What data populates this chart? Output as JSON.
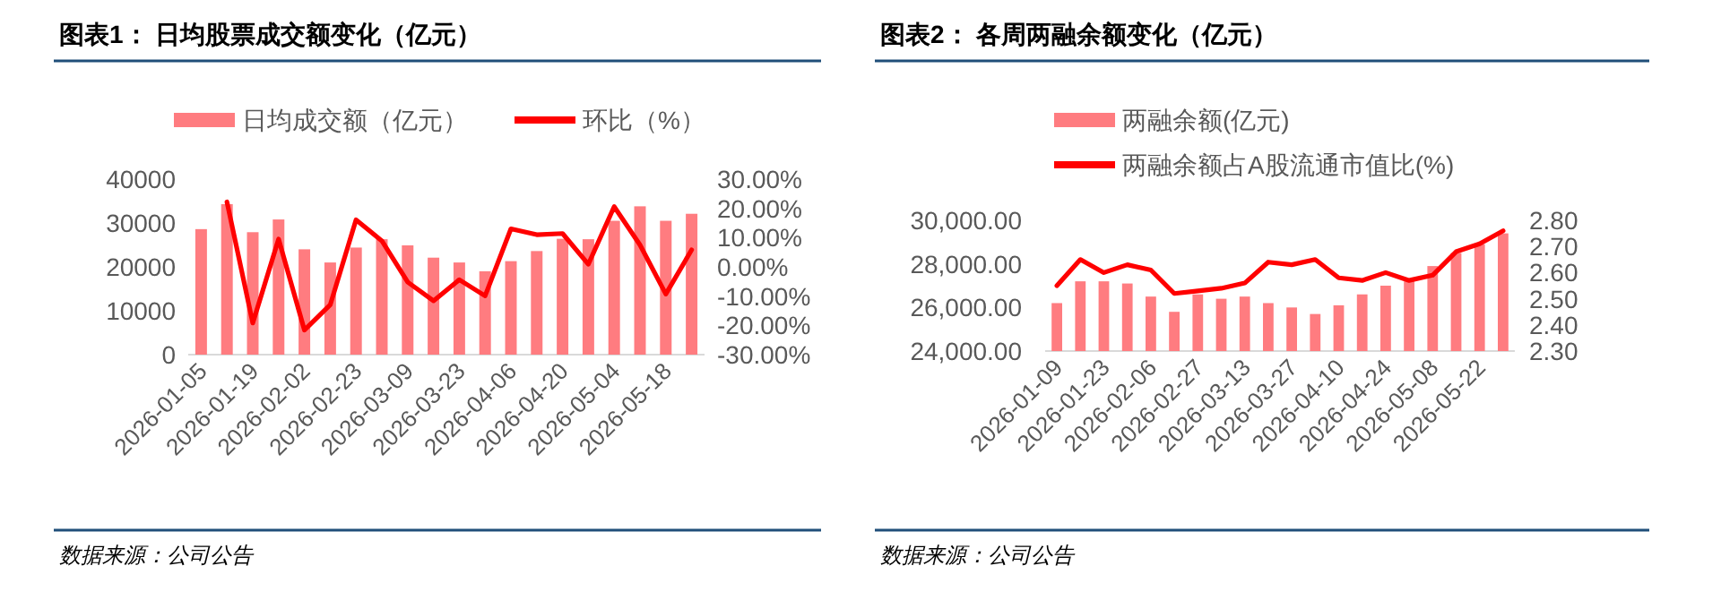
{
  "chart_data": [
    {
      "type": "bar",
      "title": "图表1：  日均股票成交额变化（亿元）",
      "annotations": [
        "数据来源：公司公告"
      ],
      "categories": [
        "2026-01-05",
        null,
        "2026-01-19",
        null,
        "2026-02-02",
        null,
        "2026-02-23",
        null,
        "2026-03-09",
        null,
        "2026-03-23",
        null,
        "2026-04-06",
        null,
        "2026-04-20",
        null,
        "2026-05-04",
        null,
        "2026-05-18",
        null
      ],
      "series": [
        {
          "name": "日均成交额（亿元）",
          "color": "#ff7c80",
          "values": [
            28600,
            34300,
            27900,
            30800,
            24000,
            21000,
            24400,
            26300,
            24900,
            22100,
            21000,
            19000,
            21300,
            23600,
            26400,
            26300,
            30500,
            33800,
            30500,
            32100
          ]
        },
        {
          "name": "环比（%）",
          "type": "line",
          "axis": "y2",
          "color": "#ff0000",
          "values": [
            null,
            22.2,
            -19.2,
            9.5,
            -21.6,
            -13.0,
            16.1,
            8.9,
            -5.2,
            -11.6,
            -4.4,
            -9.9,
            13.0,
            11.0,
            11.4,
            0.9,
            20.6,
            7.5,
            -9.3,
            5.8
          ]
        }
      ],
      "ylim": [
        0,
        40000
      ],
      "yticks": [
        0,
        10000,
        20000,
        30000,
        40000
      ],
      "y2lim": [
        -30,
        30
      ],
      "y2ticks": [
        {
          "value": -30,
          "label": "-30.00%"
        },
        {
          "value": -20,
          "label": "-20.00%"
        },
        {
          "value": -10,
          "label": "-10.00%"
        },
        {
          "value": 0,
          "label": "0.00%"
        },
        {
          "value": 10,
          "label": "10.00%"
        },
        {
          "value": 20,
          "label": "20.00%"
        },
        {
          "value": 30,
          "label": "30.00%"
        }
      ],
      "grid": false,
      "legend": "top"
    },
    {
      "type": "bar",
      "title": "图表2：  各周两融余额变化（亿元）",
      "annotations": [
        "数据来源：公司公告"
      ],
      "categories": [
        "2026-01-09",
        null,
        "2026-01-23",
        null,
        "2026-02-06",
        null,
        "2026-02-27",
        null,
        "2026-03-13",
        null,
        "2026-03-27",
        null,
        "2026-04-10",
        null,
        "2026-04-24",
        null,
        "2026-05-08",
        null,
        "2026-05-22",
        null
      ],
      "series": [
        {
          "name": "两融余额(亿元)",
          "color": "#ff7c80",
          "values": [
            26200,
            27200,
            27200,
            27100,
            26500,
            25800,
            26600,
            26400,
            26500,
            26200,
            26000,
            25700,
            26100,
            26600,
            27000,
            27200,
            27900,
            28500,
            28900,
            29400
          ]
        },
        {
          "name": "两融余额占A股流通市值比(%)",
          "type": "line",
          "axis": "y2",
          "color": "#ff0000",
          "values": [
            2.55,
            2.65,
            2.6,
            2.63,
            2.61,
            2.52,
            2.53,
            2.54,
            2.56,
            2.64,
            2.63,
            2.65,
            2.58,
            2.57,
            2.6,
            2.57,
            2.59,
            2.68,
            2.71,
            2.76
          ]
        }
      ],
      "ylim": [
        24000,
        30000
      ],
      "yticks": [
        {
          "value": 24000,
          "label": "24,000.00"
        },
        {
          "value": 26000,
          "label": "26,000.00"
        },
        {
          "value": 28000,
          "label": "28,000.00"
        },
        {
          "value": 30000,
          "label": "30,000.00"
        }
      ],
      "y2lim": [
        2.3,
        2.8
      ],
      "y2ticks": [
        {
          "value": 2.3,
          "label": "2.30"
        },
        {
          "value": 2.4,
          "label": "2.40"
        },
        {
          "value": 2.5,
          "label": "2.50"
        },
        {
          "value": 2.6,
          "label": "2.60"
        },
        {
          "value": 2.7,
          "label": "2.70"
        },
        {
          "value": 2.8,
          "label": "2.80"
        }
      ],
      "grid": false,
      "legend": "top left"
    }
  ]
}
